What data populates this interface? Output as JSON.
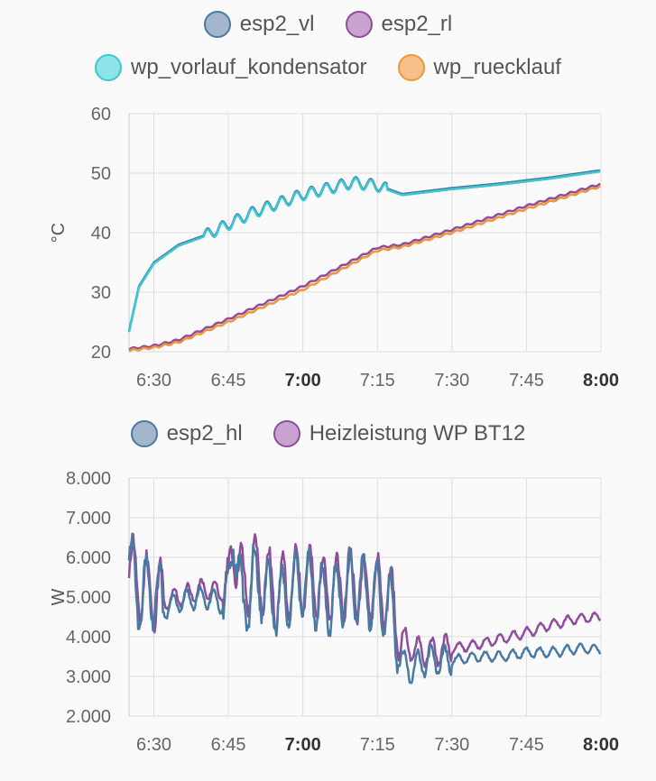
{
  "chart_data": [
    {
      "type": "line",
      "ylabel": "°C",
      "ylim": [
        20,
        60
      ],
      "yticks": [
        "60",
        "50",
        "40",
        "30",
        "20"
      ],
      "xticks": [
        {
          "label": "6:30",
          "bold": false
        },
        {
          "label": "6:45",
          "bold": false
        },
        {
          "label": "7:00",
          "bold": true
        },
        {
          "label": "7:15",
          "bold": false
        },
        {
          "label": "7:30",
          "bold": false
        },
        {
          "label": "7:45",
          "bold": false
        },
        {
          "label": "8:00",
          "bold": true
        }
      ],
      "x_range": [
        "6:25",
        "8:00"
      ],
      "grid": true,
      "legend_position": "top",
      "series": [
        {
          "name": "esp2_vl",
          "color": "#4a7aa0",
          "fill": "#a3b6cc",
          "x": [
            "6:25",
            "6:27",
            "6:30",
            "6:35",
            "6:40",
            "6:45",
            "6:50",
            "6:55",
            "7:00",
            "7:05",
            "7:10",
            "7:15",
            "7:20",
            "7:30",
            "7:40",
            "7:50",
            "8:00"
          ],
          "y": [
            23.5,
            31,
            35,
            38,
            39.5,
            41.5,
            43.5,
            45,
            46.5,
            47.5,
            48.5,
            48,
            46.5,
            47.5,
            48.3,
            49.3,
            50.5
          ]
        },
        {
          "name": "esp2_rl",
          "color": "#8e4e9c",
          "fill": "#c8a3cf",
          "x": [
            "6:25",
            "6:30",
            "6:35",
            "6:45",
            "7:00",
            "7:15",
            "7:20",
            "7:30",
            "7:45",
            "8:00"
          ],
          "y": [
            20.5,
            21,
            22,
            25.5,
            31,
            37.5,
            38,
            40.5,
            44.5,
            48.2
          ]
        },
        {
          "name": "wp_vorlauf_kondensator",
          "color": "#3cc8d2",
          "fill": "#8ee3e8",
          "x": [
            "6:25",
            "6:27",
            "6:30",
            "6:35",
            "6:40",
            "6:45",
            "6:50",
            "6:55",
            "7:00",
            "7:05",
            "7:10",
            "7:15",
            "7:20",
            "7:30",
            "7:40",
            "7:50",
            "8:00"
          ],
          "y": [
            23.3,
            30.8,
            34.8,
            37.8,
            39.3,
            41.3,
            43.3,
            44.8,
            46.3,
            47.3,
            48.3,
            47.8,
            46.3,
            47.3,
            48.1,
            49.1,
            50.3
          ]
        },
        {
          "name": "wp_ruecklauf",
          "color": "#f0953a",
          "fill": "#f5c08c",
          "x": [
            "6:25",
            "6:30",
            "6:35",
            "6:45",
            "7:00",
            "7:15",
            "7:20",
            "7:30",
            "7:45",
            "8:00"
          ],
          "y": [
            20.2,
            20.7,
            21.6,
            25,
            30.4,
            37,
            37.6,
            40,
            44,
            47.8
          ]
        }
      ]
    },
    {
      "type": "line",
      "ylabel": "W",
      "ylim": [
        2000,
        8000
      ],
      "yticks": [
        "8.000",
        "7.000",
        "6.000",
        "5.000",
        "4.000",
        "3.000",
        "2.000"
      ],
      "xticks": [
        {
          "label": "6:30",
          "bold": false
        },
        {
          "label": "6:45",
          "bold": false
        },
        {
          "label": "7:00",
          "bold": true
        },
        {
          "label": "7:15",
          "bold": false
        },
        {
          "label": "7:30",
          "bold": false
        },
        {
          "label": "7:45",
          "bold": false
        },
        {
          "label": "8:00",
          "bold": true
        }
      ],
      "x_range": [
        "6:25",
        "8:00"
      ],
      "grid": true,
      "legend_position": "top",
      "series": [
        {
          "name": "Heizleistung WP BT12",
          "color": "#8e4e9c",
          "fill": "#c8a3cf",
          "x": [
            "6:25",
            "6:27",
            "6:30",
            "6:32",
            "6:35",
            "6:40",
            "6:45",
            "6:46",
            "6:48",
            "6:50",
            "6:55",
            "7:00",
            "7:05",
            "7:10",
            "7:15",
            "7:18",
            "7:20",
            "7:22",
            "7:25",
            "7:30",
            "7:35",
            "7:40",
            "7:45",
            "7:50",
            "7:55",
            "8:00"
          ],
          "y": [
            5800,
            5300,
            5100,
            4900,
            5000,
            5200,
            5100,
            6500,
            5200,
            5700,
            5100,
            5500,
            5200,
            5300,
            5200,
            4900,
            3900,
            3700,
            3600,
            3700,
            3800,
            3950,
            4100,
            4300,
            4450,
            4500
          ]
        },
        {
          "name": "esp2_hl",
          "color": "#4a7aa0",
          "fill": "#a3b6cc",
          "x": [
            "6:25",
            "6:27",
            "6:30",
            "6:32",
            "6:35",
            "6:40",
            "6:45",
            "6:46",
            "6:48",
            "6:50",
            "6:55",
            "7:00",
            "7:05",
            "7:10",
            "7:15",
            "7:18",
            "7:20",
            "7:22",
            "7:25",
            "7:30",
            "7:35",
            "7:40",
            "7:45",
            "7:50",
            "7:55",
            "8:00"
          ],
          "y": [
            5900,
            5000,
            5200,
            4700,
            4900,
            5000,
            4800,
            6800,
            4600,
            5500,
            4800,
            5400,
            4900,
            5300,
            5000,
            4700,
            3300,
            3200,
            3400,
            3400,
            3500,
            3500,
            3600,
            3600,
            3700,
            3700
          ]
        }
      ]
    }
  ]
}
